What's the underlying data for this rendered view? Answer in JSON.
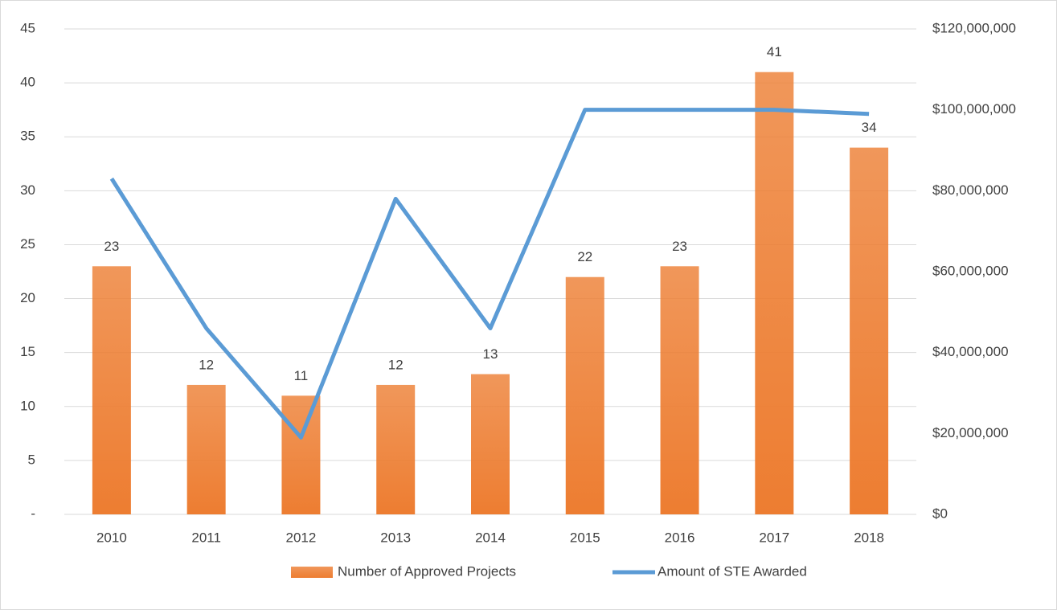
{
  "chart_data": {
    "type": "bar_line",
    "categories": [
      "2010",
      "2011",
      "2012",
      "2013",
      "2014",
      "2015",
      "2016",
      "2017",
      "2018"
    ],
    "series": [
      {
        "name": "Number of Approved Projects",
        "type": "bar",
        "color": "#ed7d31",
        "values": [
          23,
          12,
          11,
          12,
          13,
          22,
          23,
          41,
          34
        ]
      },
      {
        "name": "Amount of STE Awarded",
        "type": "line",
        "axis": "y2",
        "color": "#5b9bd5",
        "values": [
          83000000,
          46000000,
          19000000,
          78000000,
          46000000,
          100000000,
          100000000,
          100000000,
          99000000
        ]
      }
    ],
    "ylim": [
      0,
      45
    ],
    "yticks": [
      {
        "value": 0,
        "label": "-"
      },
      5,
      10,
      15,
      20,
      25,
      30,
      35,
      40,
      45
    ],
    "y2lim": [
      0,
      120000000
    ],
    "y2ticks": [
      {
        "value": 0,
        "label": "$0"
      },
      {
        "value": 20000000,
        "label": "$20,000,000"
      },
      {
        "value": 40000000,
        "label": "$40,000,000"
      },
      {
        "value": 60000000,
        "label": "$60,000,000"
      },
      {
        "value": 80000000,
        "label": "$80,000,000"
      },
      {
        "value": 100000000,
        "label": "$100,000,000"
      },
      {
        "value": 120000000,
        "label": "$120,000,000"
      }
    ],
    "grid": true,
    "legend": "bottom"
  }
}
